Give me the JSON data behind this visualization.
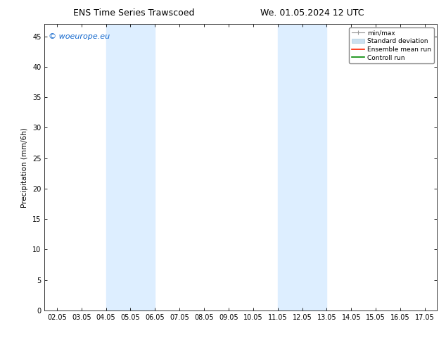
{
  "title_left": "ENS Time Series Trawscoed",
  "title_right": "We. 01.05.2024 12 UTC",
  "ylabel": "Precipitation (mm/6h)",
  "xlim": [
    0,
    15
  ],
  "ylim": [
    0,
    47
  ],
  "yticks": [
    0,
    5,
    10,
    15,
    20,
    25,
    30,
    35,
    40,
    45
  ],
  "xtick_labels": [
    "02.05",
    "03.05",
    "04.05",
    "05.05",
    "06.05",
    "07.05",
    "08.05",
    "09.05",
    "10.05",
    "11.05",
    "12.05",
    "13.05",
    "14.05",
    "15.05",
    "16.05",
    "17.05"
  ],
  "xtick_positions": [
    0,
    1,
    2,
    3,
    4,
    5,
    6,
    7,
    8,
    9,
    10,
    11,
    12,
    13,
    14,
    15
  ],
  "shaded_bands": [
    {
      "xmin": 2,
      "xmax": 4,
      "color": "#ddeeff"
    },
    {
      "xmin": 9,
      "xmax": 11,
      "color": "#ddeeff"
    }
  ],
  "background_color": "#ffffff",
  "plot_bg_color": "#ffffff",
  "watermark_text": "© woeurope.eu",
  "watermark_color": "#1166cc",
  "title_fontsize": 9,
  "axis_label_fontsize": 7.5,
  "tick_fontsize": 7,
  "legend_fontsize": 6.5,
  "watermark_fontsize": 8
}
